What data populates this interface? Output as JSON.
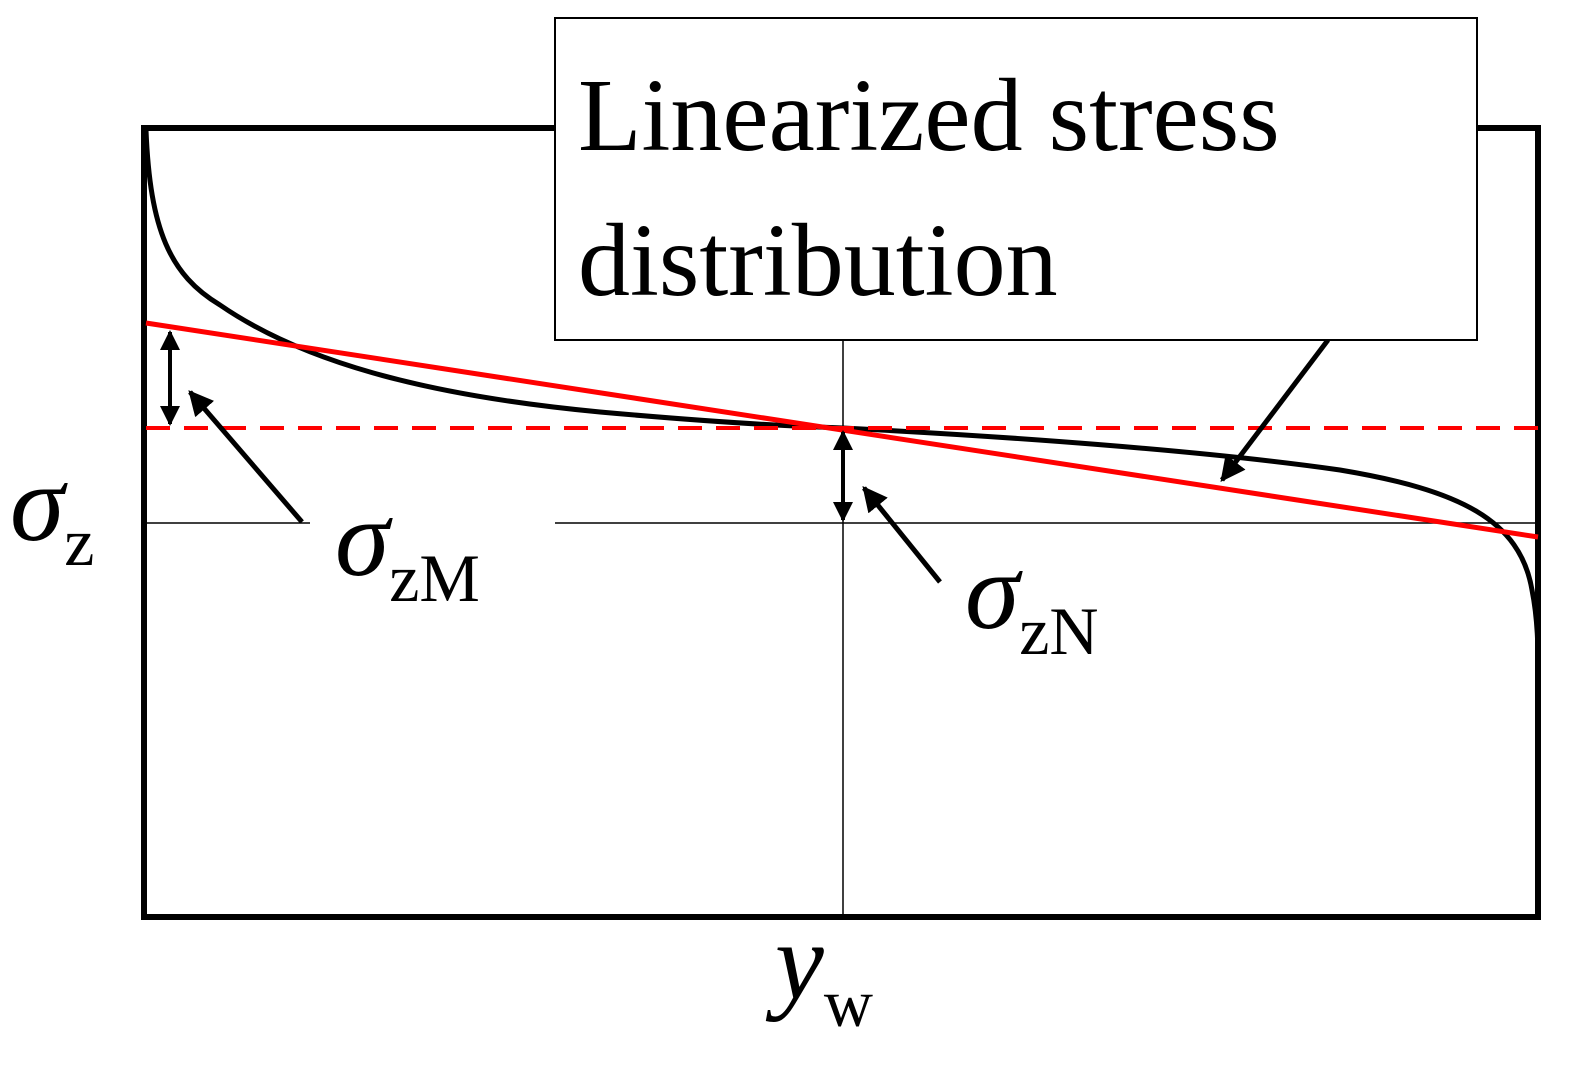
{
  "annotation": {
    "lines": [
      "Linearized stress",
      "distribution"
    ]
  },
  "axes": {
    "y_label": {
      "symbol": "σ",
      "subscript": "z"
    },
    "x_label": {
      "symbol": "y",
      "subscript": "w"
    }
  },
  "labels": [
    {
      "symbol": "σ",
      "subscript": "zM"
    },
    {
      "symbol": "σ",
      "subscript": "zN"
    }
  ]
}
